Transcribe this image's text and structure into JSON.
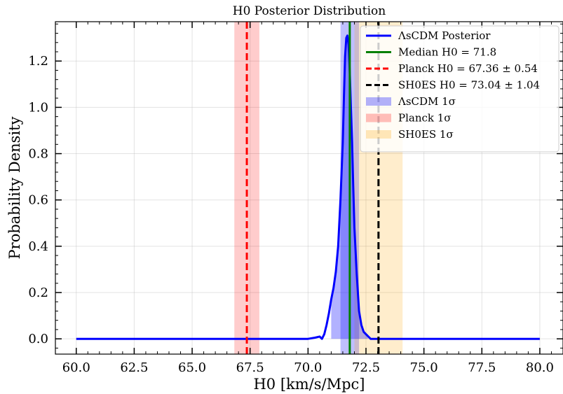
{
  "chart_data": {
    "type": "line",
    "title": "H0 Posterior Distribution",
    "xlabel": "H0 [km/s/Mpc]",
    "ylabel": "Probability Density",
    "xlim": [
      59.1,
      81.0
    ],
    "ylim": [
      -0.066,
      1.37
    ],
    "x_ticks": [
      60.0,
      62.5,
      65.0,
      67.5,
      70.0,
      72.5,
      75.0,
      77.5,
      80.0
    ],
    "x_tick_labels": [
      "60.0",
      "62.5",
      "65.0",
      "67.5",
      "70.0",
      "72.5",
      "75.0",
      "77.5",
      "80.0"
    ],
    "y_ticks": [
      0.0,
      0.2,
      0.4,
      0.6,
      0.8,
      1.0,
      1.2
    ],
    "y_tick_labels": [
      "0.0",
      "0.2",
      "0.4",
      "0.6",
      "0.8",
      "1.0",
      "1.2"
    ],
    "grid": true,
    "legend_position": "top-right",
    "series": [
      {
        "name": "ΛsCDM Posterior",
        "color": "#0000ff",
        "x": [
          60.0,
          70.0,
          70.3,
          70.5,
          70.6,
          70.7,
          70.8,
          70.9,
          71.0,
          71.1,
          71.2,
          71.3,
          71.4,
          71.5,
          71.55,
          71.6,
          71.65,
          71.7,
          71.75,
          71.8,
          71.85,
          71.9,
          71.95,
          72.0,
          72.1,
          72.2,
          72.3,
          72.4,
          72.5,
          72.7,
          73.0,
          80.0
        ],
        "y": [
          0.0,
          0.0,
          0.005,
          0.01,
          0.0,
          0.02,
          0.06,
          0.11,
          0.17,
          0.22,
          0.29,
          0.4,
          0.6,
          0.85,
          1.05,
          1.22,
          1.3,
          1.31,
          1.27,
          1.15,
          1.0,
          0.85,
          0.66,
          0.48,
          0.28,
          0.12,
          0.06,
          0.03,
          0.02,
          0.0,
          0.0,
          0.0
        ]
      }
    ],
    "vertical_lines": [
      {
        "name": "Median H0 = 71.8",
        "x": 71.8,
        "color": "#008000",
        "style": "solid"
      },
      {
        "name": "Planck H0 = 67.36 ± 0.54",
        "x": 67.36,
        "color": "#ff0000",
        "style": "dashed"
      },
      {
        "name": "SH0ES H0 = 73.04 ± 1.04",
        "x": 73.04,
        "color": "#000000",
        "style": "dashed"
      }
    ],
    "bands": [
      {
        "name": "ΛsCDM 1σ",
        "x0": 71.4,
        "x1": 72.2,
        "color": "#0000ff",
        "opacity": 0.25
      },
      {
        "name": "Planck 1σ",
        "x0": 66.82,
        "x1": 67.9,
        "color": "#ff0000",
        "opacity": 0.2
      },
      {
        "name": "SH0ES 1σ",
        "x0": 72.0,
        "x1": 74.08,
        "color": "#ffa500",
        "opacity": 0.2
      }
    ],
    "fill_under_curve": {
      "x0": 71.0,
      "x1": 72.6,
      "color": "#0000ff",
      "opacity": 0.3
    }
  }
}
